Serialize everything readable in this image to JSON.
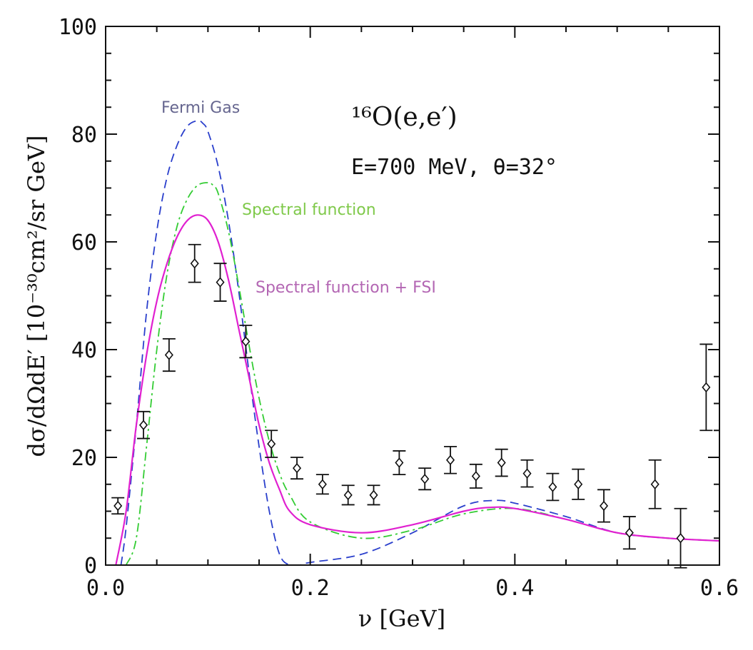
{
  "chart_data": {
    "type": "line",
    "xlabel": "ν [GeV]",
    "ylabel": "dσ/dΩdE′ [10⁻³⁰cm²/sr GeV]",
    "xlim": [
      0,
      0.6
    ],
    "ylim": [
      0,
      100
    ],
    "xticks": [
      0,
      0.2,
      0.4,
      0.6
    ],
    "xtick_labels": [
      "0.0",
      "0.2",
      "0.4",
      "0.6"
    ],
    "yticks": [
      0,
      20,
      40,
      60,
      80,
      100
    ],
    "ytick_labels": [
      "0",
      "20",
      "40",
      "60",
      "80",
      "100"
    ],
    "grid": false,
    "annotations": {
      "reaction": "¹⁶O(e,e′)",
      "kinematics": "E=700 MeV, θ=32°"
    },
    "series": [
      {
        "name": "Fermi Gas",
        "color": "#2a3fcc",
        "style": "dashed",
        "label_color": "#66668f",
        "x": [
          0.015,
          0.02,
          0.03,
          0.04,
          0.05,
          0.06,
          0.07,
          0.08,
          0.09,
          0.095,
          0.1,
          0.11,
          0.12,
          0.13,
          0.14,
          0.15,
          0.16,
          0.17,
          0.18,
          0.19,
          0.2,
          0.25,
          0.3,
          0.35,
          0.38,
          0.4,
          0.45,
          0.5,
          0.55,
          0.6
        ],
        "y": [
          0,
          7,
          26,
          47,
          62,
          72,
          78,
          81.5,
          82.5,
          82,
          80.5,
          74,
          64,
          51,
          36,
          22,
          10,
          2,
          0,
          0,
          0.5,
          2,
          6,
          11,
          12,
          11.5,
          9,
          6,
          5,
          4.5
        ]
      },
      {
        "name": "Spectral function",
        "color": "#33cc33",
        "style": "dashdot",
        "label_color": "#7fc94a",
        "x": [
          0.02,
          0.03,
          0.04,
          0.05,
          0.06,
          0.07,
          0.08,
          0.09,
          0.1,
          0.105,
          0.11,
          0.12,
          0.13,
          0.14,
          0.15,
          0.16,
          0.17,
          0.18,
          0.2,
          0.25,
          0.3,
          0.35,
          0.4,
          0.45,
          0.5,
          0.55,
          0.6
        ],
        "y": [
          0,
          5,
          22,
          40,
          54,
          63,
          68,
          70.5,
          71,
          70.5,
          69,
          62,
          52,
          41,
          31,
          23,
          17,
          13,
          8,
          5,
          6.5,
          9.5,
          10.5,
          8.5,
          6,
          5,
          4.5
        ]
      },
      {
        "name": "Spectral function + FSI",
        "color": "#e020d0",
        "style": "solid",
        "label_color": "#b366b3",
        "x": [
          0.01,
          0.02,
          0.03,
          0.04,
          0.05,
          0.06,
          0.07,
          0.08,
          0.09,
          0.1,
          0.11,
          0.12,
          0.13,
          0.14,
          0.15,
          0.16,
          0.17,
          0.18,
          0.2,
          0.25,
          0.3,
          0.35,
          0.375,
          0.4,
          0.45,
          0.5,
          0.55,
          0.6
        ],
        "y": [
          0,
          10,
          26,
          39,
          49,
          56,
          61,
          64,
          65,
          64,
          60,
          53,
          44,
          35,
          26,
          19,
          14,
          10,
          7.5,
          6,
          7.5,
          10,
          10.7,
          10.5,
          8.5,
          6,
          5,
          4.5
        ]
      }
    ],
    "data_points": {
      "name": "data",
      "x": [
        0.012,
        0.037,
        0.062,
        0.087,
        0.112,
        0.137,
        0.162,
        0.187,
        0.212,
        0.237,
        0.262,
        0.287,
        0.312,
        0.337,
        0.362,
        0.387,
        0.412,
        0.437,
        0.462,
        0.487,
        0.512,
        0.537,
        0.562,
        0.587
      ],
      "y": [
        11,
        26,
        39,
        56,
        52.5,
        41.5,
        22.5,
        18,
        15,
        13,
        13,
        19,
        16,
        19.5,
        16.5,
        19,
        17,
        14.5,
        15,
        11,
        6,
        15,
        5,
        33
      ],
      "err": [
        1.5,
        2.5,
        3,
        3.5,
        3.5,
        3,
        2.5,
        2,
        1.8,
        1.8,
        1.8,
        2.2,
        2,
        2.5,
        2.2,
        2.5,
        2.5,
        2.5,
        2.8,
        3,
        3,
        4.5,
        5.5,
        8
      ]
    }
  }
}
